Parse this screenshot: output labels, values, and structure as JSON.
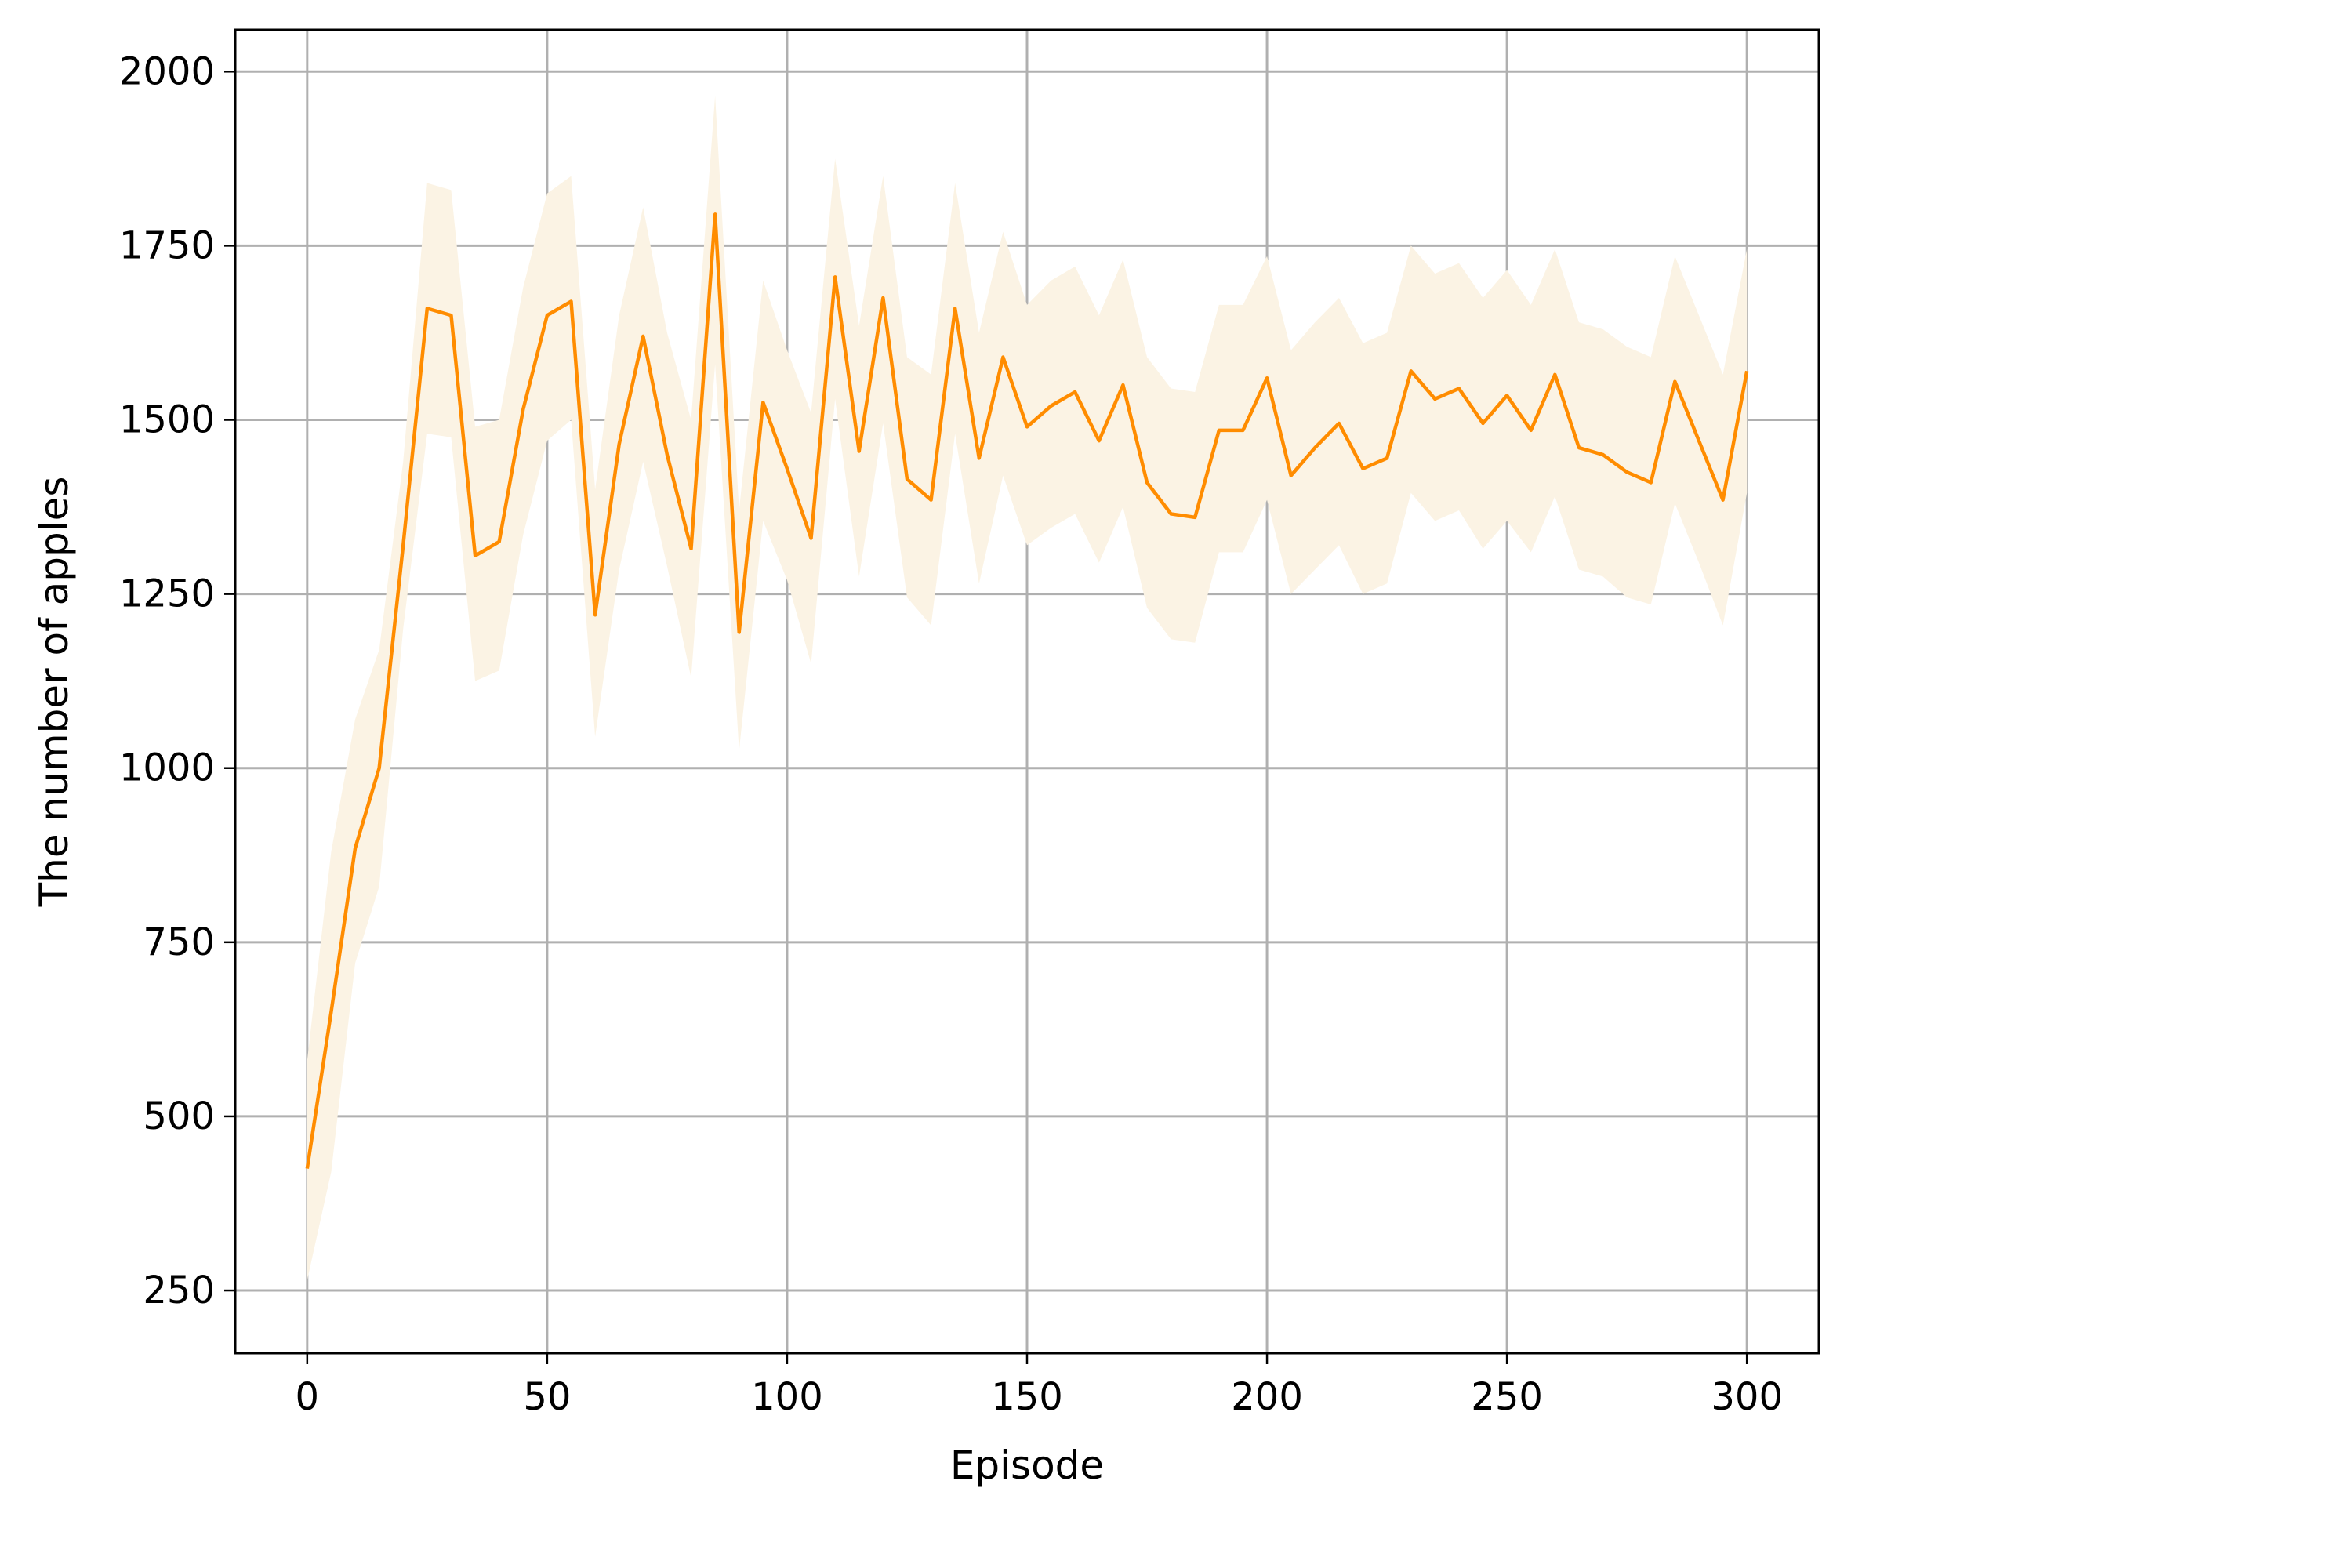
{
  "chart_data": {
    "type": "line",
    "title": "",
    "xlabel": "Episode",
    "ylabel": "The number of apples",
    "xlim": [
      -15,
      315
    ],
    "ylim": [
      160,
      2060
    ],
    "xticks": [
      0,
      50,
      100,
      150,
      200,
      250,
      300
    ],
    "yticks": [
      250,
      500,
      750,
      1000,
      1250,
      1500,
      1750,
      2000
    ],
    "xtick_labels": [
      "0",
      "50",
      "100",
      "150",
      "200",
      "250",
      "300"
    ],
    "ytick_labels": [
      "250",
      "500",
      "750",
      "1000",
      "1250",
      "1500",
      "1750",
      "2000"
    ],
    "grid": true,
    "legend": "none",
    "colors": {
      "line": "#ff8c00",
      "band": "#fbf3e4",
      "grid": "#b0b0b0",
      "axes": "#000000"
    },
    "series": [
      {
        "x": [
          0,
          5,
          10,
          15,
          20,
          25,
          30,
          35,
          40,
          45,
          50,
          55,
          60,
          65,
          70,
          75,
          80,
          85,
          90,
          95,
          100,
          105,
          110,
          115,
          120,
          125,
          130,
          135,
          140,
          145,
          150,
          155,
          160,
          165,
          170,
          175,
          180,
          185,
          190,
          195,
          200,
          205,
          210,
          215,
          220,
          225,
          230,
          235,
          240,
          245,
          250,
          255,
          260,
          265,
          270,
          275,
          280,
          285,
          290,
          295,
          300
        ],
        "y": [
          425,
          650,
          885,
          1000,
          1320,
          1660,
          1650,
          1305,
          1325,
          1515,
          1650,
          1670,
          1220,
          1465,
          1620,
          1450,
          1315,
          1795,
          1195,
          1525,
          1430,
          1330,
          1705,
          1455,
          1675,
          1415,
          1385,
          1660,
          1445,
          1590,
          1490,
          1520,
          1540,
          1470,
          1550,
          1410,
          1365,
          1360,
          1485,
          1485,
          1560,
          1420,
          1460,
          1495,
          1430,
          1445,
          1570,
          1530,
          1545,
          1495,
          1535,
          1485,
          1565,
          1460,
          1450,
          1425,
          1410,
          1555,
          1470,
          1385,
          1570
        ],
        "lower": [
          265,
          420,
          720,
          830,
          1200,
          1480,
          1475,
          1125,
          1140,
          1335,
          1470,
          1500,
          1045,
          1285,
          1440,
          1290,
          1130,
          1580,
          1025,
          1355,
          1270,
          1150,
          1530,
          1275,
          1495,
          1245,
          1205,
          1480,
          1265,
          1420,
          1320,
          1345,
          1365,
          1295,
          1375,
          1230,
          1185,
          1180,
          1310,
          1310,
          1385,
          1250,
          1285,
          1320,
          1250,
          1265,
          1395,
          1355,
          1370,
          1315,
          1355,
          1310,
          1390,
          1285,
          1275,
          1245,
          1235,
          1380,
          1295,
          1205,
          1395
        ],
        "upper": [
          580,
          880,
          1070,
          1170,
          1440,
          1840,
          1830,
          1490,
          1500,
          1690,
          1825,
          1850,
          1400,
          1650,
          1805,
          1625,
          1500,
          1965,
          1370,
          1700,
          1600,
          1510,
          1875,
          1635,
          1850,
          1590,
          1565,
          1840,
          1625,
          1770,
          1665,
          1700,
          1720,
          1650,
          1730,
          1590,
          1545,
          1540,
          1665,
          1665,
          1735,
          1600,
          1640,
          1675,
          1610,
          1625,
          1750,
          1710,
          1725,
          1675,
          1715,
          1665,
          1745,
          1640,
          1630,
          1605,
          1590,
          1735,
          1650,
          1565,
          1745
        ]
      }
    ]
  }
}
